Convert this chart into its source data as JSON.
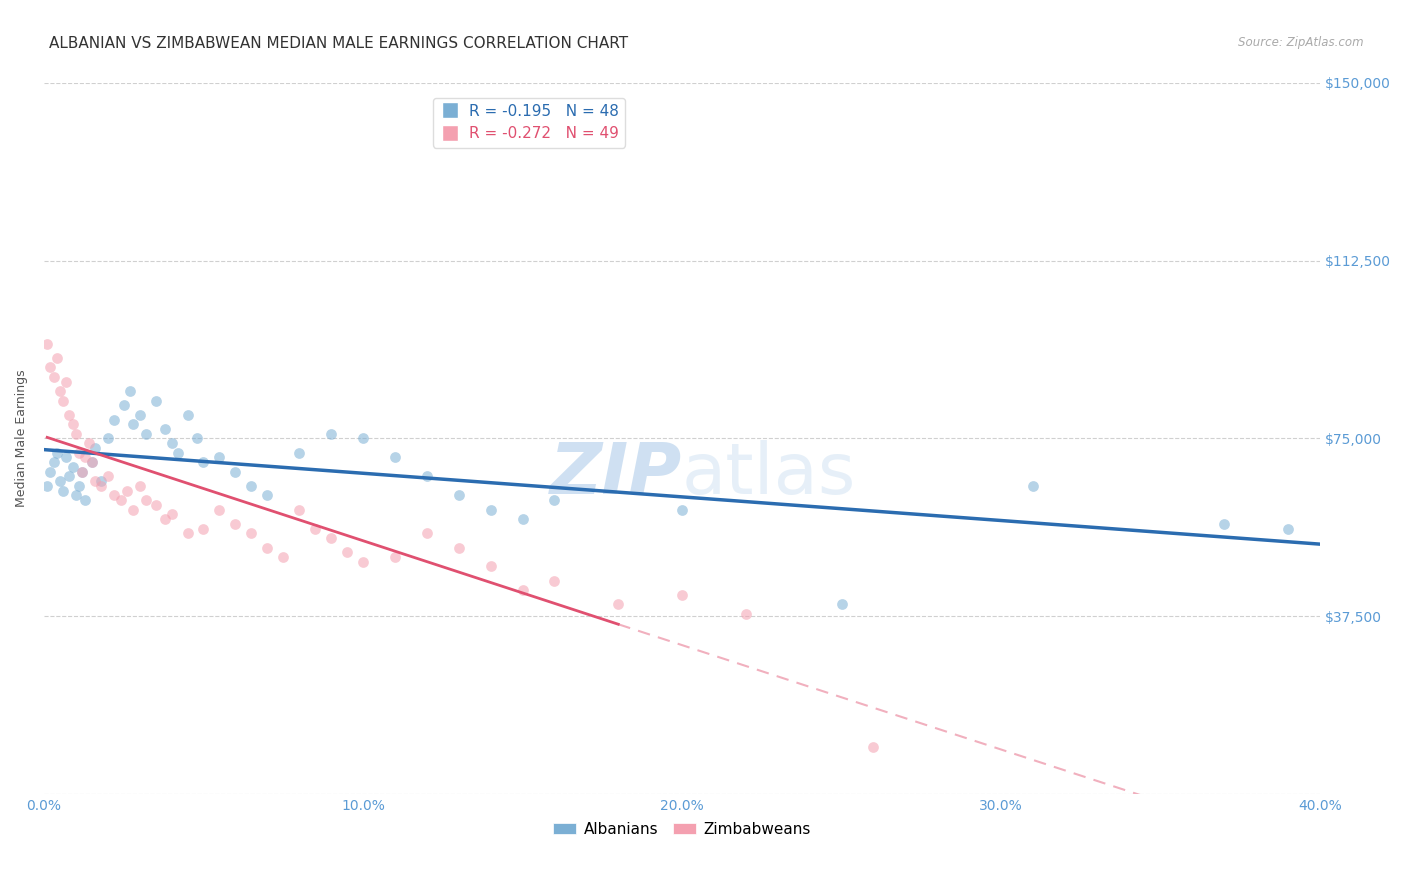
{
  "title": "ALBANIAN VS ZIMBABWEAN MEDIAN MALE EARNINGS CORRELATION CHART",
  "source": "Source: ZipAtlas.com",
  "ylabel": "Median Male Earnings",
  "xlim": [
    0.0,
    0.4
  ],
  "ylim": [
    0,
    150000
  ],
  "yticks": [
    0,
    37500,
    75000,
    112500,
    150000
  ],
  "ytick_labels": [
    "",
    "$37,500",
    "$75,000",
    "$112,500",
    "$150,000"
  ],
  "xtick_labels": [
    "0.0%",
    "10.0%",
    "20.0%",
    "30.0%",
    "40.0%"
  ],
  "xtick_values": [
    0.0,
    0.1,
    0.2,
    0.3,
    0.4
  ],
  "watermark_zip": "ZIP",
  "watermark_atlas": "atlas",
  "albanian_color": "#7bafd4",
  "zimbabwean_color": "#f4a0b0",
  "trendline_albanian_color": "#2b6cb0",
  "trendline_zimbabwean_color": "#e05070",
  "legend_R_albanian": "R = -0.195",
  "legend_N_albanian": "N = 48",
  "legend_R_zimbabwean": "R = -0.272",
  "legend_N_zimbabwean": "N = 49",
  "albanian_x": [
    0.001,
    0.002,
    0.003,
    0.004,
    0.005,
    0.006,
    0.007,
    0.008,
    0.009,
    0.01,
    0.011,
    0.012,
    0.013,
    0.015,
    0.016,
    0.018,
    0.02,
    0.022,
    0.025,
    0.027,
    0.028,
    0.03,
    0.032,
    0.035,
    0.038,
    0.04,
    0.042,
    0.045,
    0.048,
    0.05,
    0.055,
    0.06,
    0.065,
    0.07,
    0.08,
    0.09,
    0.1,
    0.11,
    0.12,
    0.13,
    0.14,
    0.15,
    0.16,
    0.2,
    0.25,
    0.31,
    0.37,
    0.39
  ],
  "albanian_y": [
    65000,
    68000,
    70000,
    72000,
    66000,
    64000,
    71000,
    67000,
    69000,
    63000,
    65000,
    68000,
    62000,
    70000,
    73000,
    66000,
    75000,
    79000,
    82000,
    85000,
    78000,
    80000,
    76000,
    83000,
    77000,
    74000,
    72000,
    80000,
    75000,
    70000,
    71000,
    68000,
    65000,
    63000,
    72000,
    76000,
    75000,
    71000,
    67000,
    63000,
    60000,
    58000,
    62000,
    60000,
    40000,
    65000,
    57000,
    56000
  ],
  "zimbabwean_x": [
    0.001,
    0.002,
    0.003,
    0.004,
    0.005,
    0.006,
    0.007,
    0.008,
    0.009,
    0.01,
    0.011,
    0.012,
    0.013,
    0.014,
    0.015,
    0.016,
    0.018,
    0.02,
    0.022,
    0.024,
    0.026,
    0.028,
    0.03,
    0.032,
    0.035,
    0.038,
    0.04,
    0.045,
    0.05,
    0.055,
    0.06,
    0.065,
    0.07,
    0.075,
    0.08,
    0.085,
    0.09,
    0.095,
    0.1,
    0.11,
    0.12,
    0.13,
    0.14,
    0.15,
    0.16,
    0.18,
    0.2,
    0.22,
    0.26
  ],
  "zimbabwean_y": [
    95000,
    90000,
    88000,
    92000,
    85000,
    83000,
    87000,
    80000,
    78000,
    76000,
    72000,
    68000,
    71000,
    74000,
    70000,
    66000,
    65000,
    67000,
    63000,
    62000,
    64000,
    60000,
    65000,
    62000,
    61000,
    58000,
    59000,
    55000,
    56000,
    60000,
    57000,
    55000,
    52000,
    50000,
    60000,
    56000,
    54000,
    51000,
    49000,
    50000,
    55000,
    52000,
    48000,
    43000,
    45000,
    40000,
    42000,
    38000,
    10000
  ],
  "grid_color": "#d0d0d0",
  "background_color": "#ffffff",
  "title_fontsize": 11,
  "axis_tick_color": "#5b9bd5",
  "ylabel_fontsize": 9,
  "scatter_size": 60,
  "scatter_alpha": 0.55
}
